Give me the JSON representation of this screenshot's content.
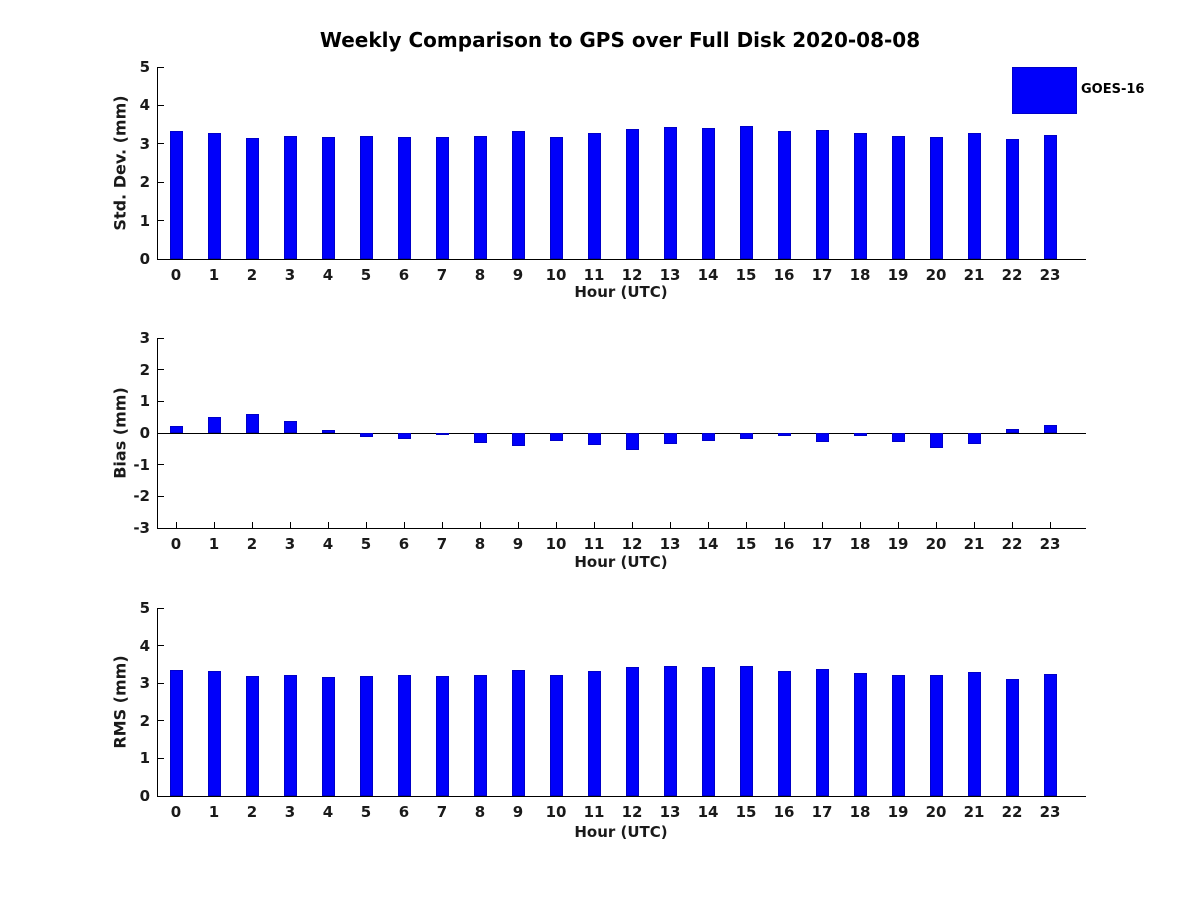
{
  "page": {
    "title": "Weekly Comparison to GPS over Full Disk 2020-08-08",
    "legend": {
      "label": "GOES-16",
      "color": "#0000fa",
      "edge_color": "#0000c8"
    }
  },
  "chart_data": [
    {
      "type": "bar",
      "title": "Weekly Comparison to GPS over Full Disk 2020-08-08",
      "ylabel": "Std. Dev. (mm)",
      "xlabel": "Hour (UTC)",
      "categories": [
        "0",
        "1",
        "2",
        "3",
        "4",
        "5",
        "6",
        "7",
        "8",
        "9",
        "10",
        "11",
        "12",
        "13",
        "14",
        "15",
        "16",
        "17",
        "18",
        "19",
        "20",
        "21",
        "22",
        "23"
      ],
      "values": [
        3.33,
        3.29,
        3.15,
        3.21,
        3.18,
        3.21,
        3.19,
        3.17,
        3.2,
        3.33,
        3.17,
        3.29,
        3.38,
        3.44,
        3.41,
        3.46,
        3.33,
        3.36,
        3.27,
        3.2,
        3.18,
        3.27,
        3.12,
        3.22
      ],
      "ylim": [
        0,
        5
      ],
      "yticks": [
        0,
        1,
        2,
        3,
        4,
        5
      ],
      "grid": false,
      "legend_position": "upper-right-outside",
      "series_name": "GOES-16"
    },
    {
      "type": "bar",
      "ylabel": "Bias (mm)",
      "xlabel": "Hour (UTC)",
      "categories": [
        "0",
        "1",
        "2",
        "3",
        "4",
        "5",
        "6",
        "7",
        "8",
        "9",
        "10",
        "11",
        "12",
        "13",
        "14",
        "15",
        "16",
        "17",
        "18",
        "19",
        "20",
        "21",
        "22",
        "23"
      ],
      "values": [
        0.23,
        0.49,
        0.59,
        0.38,
        0.11,
        -0.12,
        -0.18,
        -0.04,
        -0.3,
        -0.42,
        -0.25,
        -0.38,
        -0.54,
        -0.34,
        -0.25,
        -0.19,
        -0.08,
        -0.28,
        -0.11,
        -0.28,
        -0.47,
        -0.36,
        0.12,
        0.26
      ],
      "ylim": [
        -3,
        3
      ],
      "yticks": [
        3,
        2,
        1,
        0,
        -1,
        -2,
        -3
      ],
      "grid": false,
      "zero_line": true,
      "series_name": "GOES-16"
    },
    {
      "type": "bar",
      "ylabel": "RMS (mm)",
      "xlabel": "Hour (UTC)",
      "categories": [
        "0",
        "1",
        "2",
        "3",
        "4",
        "5",
        "6",
        "7",
        "8",
        "9",
        "10",
        "11",
        "12",
        "13",
        "14",
        "15",
        "16",
        "17",
        "18",
        "19",
        "20",
        "21",
        "22",
        "23"
      ],
      "values": [
        3.34,
        3.32,
        3.19,
        3.22,
        3.17,
        3.2,
        3.23,
        3.19,
        3.22,
        3.34,
        3.21,
        3.32,
        3.42,
        3.47,
        3.44,
        3.46,
        3.33,
        3.38,
        3.27,
        3.22,
        3.23,
        3.31,
        3.12,
        3.25
      ],
      "ylim": [
        0,
        5
      ],
      "yticks": [
        0,
        1,
        2,
        3,
        4,
        5
      ],
      "grid": false,
      "series_name": "GOES-16"
    }
  ]
}
